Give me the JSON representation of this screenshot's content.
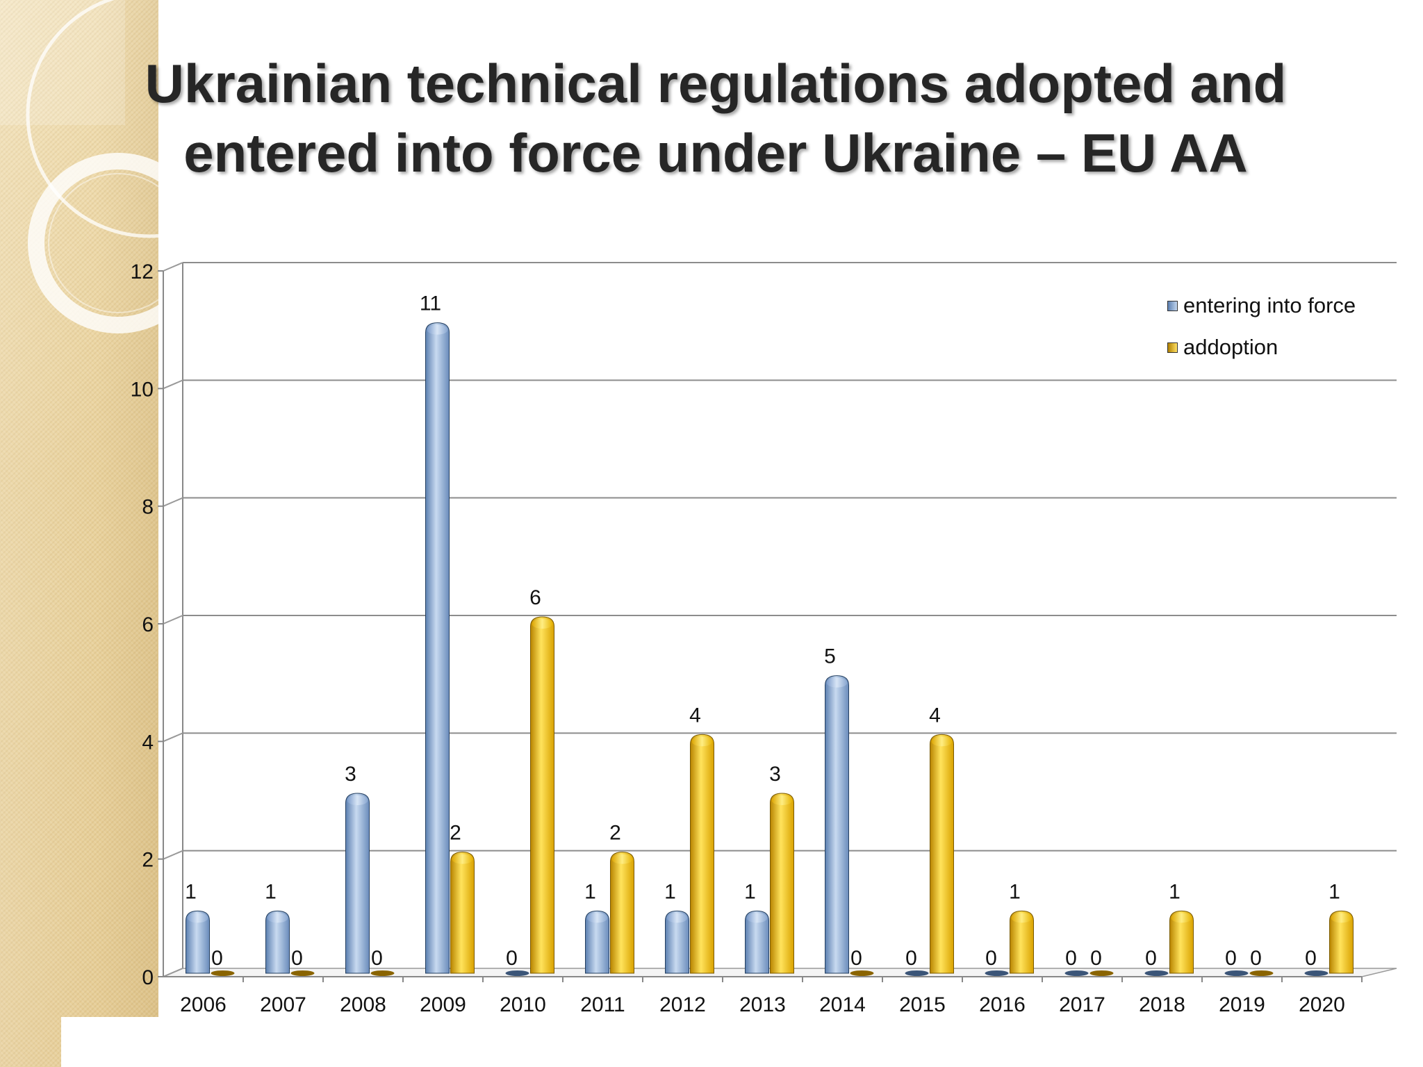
{
  "slide": {
    "title_line1": "Ukrainian technical regulations adopted and",
    "title_line2": "entered into force under Ukraine – EU AA"
  },
  "colors": {
    "entering": "#95b3d7",
    "adoption": "#ffc000"
  },
  "chart_data": {
    "type": "bar",
    "categories": [
      "2006",
      "2007",
      "2008",
      "2009",
      "2010",
      "2011",
      "2012",
      "2013",
      "2014",
      "2015",
      "2016",
      "2017",
      "2018",
      "2019",
      "2020"
    ],
    "series": [
      {
        "name": "entering into force",
        "values": [
          1,
          1,
          3,
          11,
          0,
          1,
          1,
          1,
          5,
          0,
          0,
          0,
          0,
          0,
          0
        ]
      },
      {
        "name": "addoption",
        "values": [
          0,
          0,
          0,
          2,
          6,
          2,
          4,
          3,
          0,
          4,
          1,
          0,
          1,
          0,
          1
        ]
      }
    ],
    "ylim": [
      0,
      12
    ],
    "yticks": [
      "0",
      "2",
      "4",
      "6",
      "8",
      "10",
      "12"
    ],
    "grid": true,
    "legend_position": "top-right",
    "data_labels": true
  }
}
